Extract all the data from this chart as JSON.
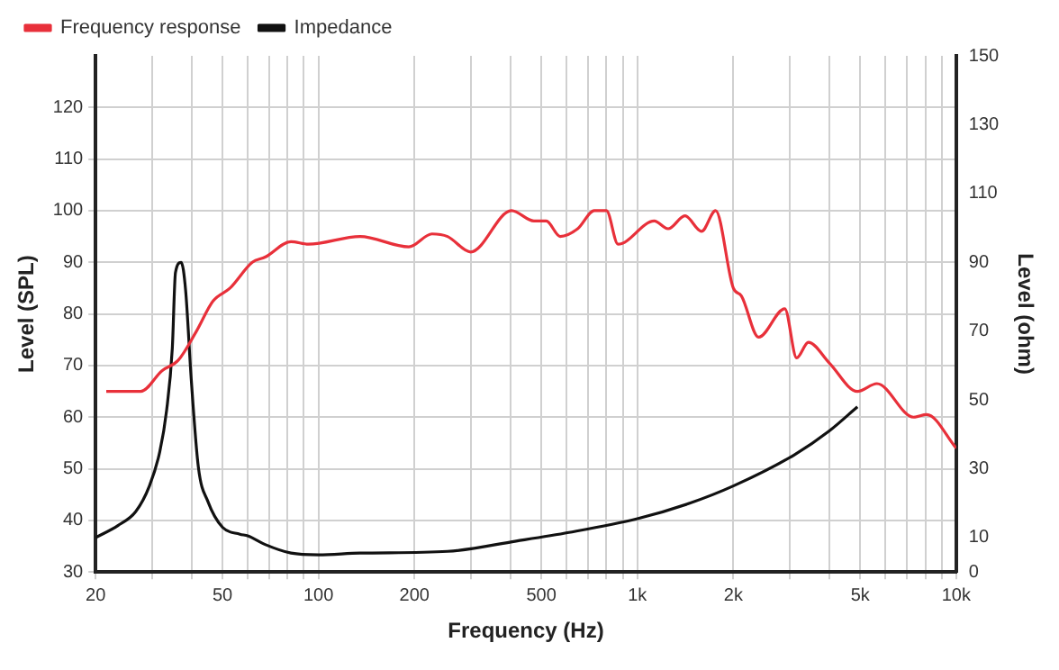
{
  "chart_data": {
    "type": "line",
    "xlabel": "Frequency (Hz)",
    "ylabel": "Level (SPL)",
    "y2label": "Level (ohm)",
    "log": "x",
    "grid": true,
    "legend": "top left",
    "marker": "none",
    "line_style": "solid",
    "xlim": [
      20,
      10000
    ],
    "xticks": [
      20,
      {
        "value": 30,
        "label": null
      },
      {
        "value": 40,
        "label": null
      },
      50,
      {
        "value": 60,
        "label": null
      },
      {
        "value": 70,
        "label": null
      },
      {
        "value": 80,
        "label": null
      },
      {
        "value": 90,
        "label": null
      },
      100,
      200,
      {
        "value": 300,
        "label": null
      },
      {
        "value": 400,
        "label": null
      },
      500,
      {
        "value": 600,
        "label": null
      },
      {
        "value": 700,
        "label": null
      },
      {
        "value": 800,
        "label": null
      },
      {
        "value": 900,
        "label": null
      },
      {
        "value": 1000,
        "label": "1k"
      },
      {
        "value": 2000,
        "label": "2k"
      },
      {
        "value": 3000,
        "label": null
      },
      {
        "value": 4000,
        "label": null
      },
      {
        "value": 5000,
        "label": "5k"
      },
      {
        "value": 6000,
        "label": null
      },
      {
        "value": 7000,
        "label": null
      },
      {
        "value": 8000,
        "label": null
      },
      {
        "value": 9000,
        "label": null
      },
      {
        "value": 10000,
        "label": "10k"
      }
    ],
    "ylim": [
      30,
      130
    ],
    "yticks": [
      30,
      40,
      50,
      60,
      70,
      80,
      90,
      100,
      110,
      120
    ],
    "y2lim": [
      0,
      150
    ],
    "y2ticks": [
      0,
      10,
      30,
      50,
      70,
      90,
      110,
      130,
      150
    ],
    "series": [
      {
        "name": "Frequency response",
        "color": "#e8303a",
        "x": [
          21.6,
          27.7,
          32.3,
          36.3,
          41.3,
          46.7,
          52.8,
          62,
          68,
          82,
          93,
          135,
          192,
          227,
          254,
          300,
          403,
          474,
          518,
          573,
          650,
          733,
          800,
          870,
          1130,
          1250,
          1410,
          1590,
          1760,
          2000,
          2120,
          2400,
          2900,
          3160,
          3440,
          4000,
          4900,
          5640,
          7350,
          8080,
          10000
        ],
        "values": [
          65,
          65,
          69,
          71,
          76.5,
          82.5,
          85,
          90,
          91,
          94,
          93.5,
          95,
          93,
          95.5,
          95,
          92,
          100,
          98,
          98,
          95,
          96.5,
          100,
          100,
          93.5,
          98,
          96.5,
          99,
          96,
          100,
          85,
          83.5,
          75.5,
          81,
          71.5,
          74.5,
          70.5,
          65,
          66.5,
          60,
          60.5,
          54
        ]
      },
      {
        "name": "Impedance",
        "color": "#111111",
        "axis": "y2",
        "x": [
          20,
          23.5,
          26.7,
          29.5,
          31.8,
          33.4,
          34.8,
          35.6,
          37.1,
          38.3,
          39.9,
          42,
          45,
          50,
          56.7,
          60,
          68,
          82,
          100,
          135,
          254,
          417,
          610,
          1000,
          1460,
          2000,
          3100,
          4000,
          4900
        ],
        "values": [
          10,
          13.5,
          17.5,
          25,
          35,
          47,
          65,
          87,
          90,
          82,
          56,
          30.5,
          20.5,
          13,
          11,
          10.5,
          8,
          5.5,
          5,
          5.5,
          6,
          9,
          11.5,
          15.5,
          20,
          25,
          34,
          41,
          48
        ]
      }
    ]
  }
}
